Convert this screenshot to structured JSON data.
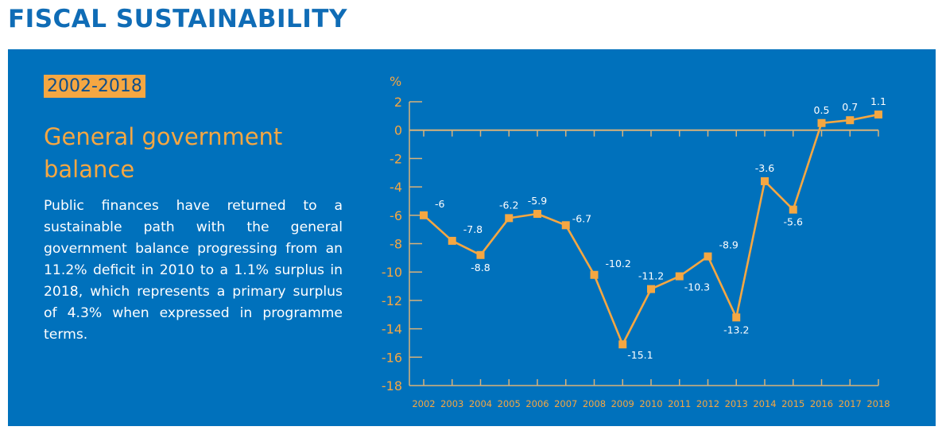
{
  "page": {
    "title": "FISCAL SUSTAINABILITY"
  },
  "panel": {
    "period": "2002-2018",
    "section_title": "General government balance",
    "body": "Public finances have returned to a sustainable path with the general government balance progressing from an 11.2% deficit in 2010 to a 1.1% surplus in 2018, which represents a primary surplus of 4.3% when expressed in programme terms."
  },
  "colors": {
    "title_blue": "#0f6cb6",
    "panel_blue": "#0071bc",
    "accent_orange": "#f5a742",
    "axis_tan": "#d9b27a",
    "label_white": "#ffffff"
  },
  "chart_data": {
    "type": "line",
    "title": "General government balance",
    "xlabel": "",
    "ylabel": "%",
    "x": [
      "2002",
      "2003",
      "2004",
      "2005",
      "2006",
      "2007",
      "2008",
      "2009",
      "2010",
      "2011",
      "2012",
      "2013",
      "2014",
      "2015",
      "2016",
      "2017",
      "2018"
    ],
    "series": [
      {
        "name": "General government balance",
        "values": [
          -6,
          -7.8,
          -8.8,
          -6.2,
          -5.9,
          -6.7,
          -10.2,
          -15.1,
          -11.2,
          -10.3,
          -8.9,
          -13.2,
          -3.6,
          -5.6,
          0.5,
          0.7,
          1.1
        ],
        "labels": [
          "-6",
          "-7.8",
          "-8.8",
          "-6.2",
          "-5.9",
          "-6.7",
          "-10.2",
          "-15.1",
          "-11.2",
          "-10.3",
          "-8.9",
          "-13.2",
          "-3.6",
          "-5.6",
          "0.5",
          "0.7",
          "1.1"
        ],
        "label_position": [
          "above-right",
          "above-right",
          "below",
          "above",
          "above",
          "right",
          "above-right",
          "below-right",
          "above",
          "below-right",
          "above-right",
          "below",
          "above",
          "below",
          "above",
          "above",
          "above"
        ]
      }
    ],
    "ylim": [
      -18,
      2
    ],
    "yticks": [
      2,
      0,
      -2,
      -4,
      -6,
      -8,
      -10,
      -12,
      -14,
      -16,
      -18
    ],
    "ytick_labels": [
      "2",
      "0",
      "-2",
      "-4",
      "-6",
      "-8",
      "-10",
      "-12",
      "-14",
      "-16",
      "-18"
    ],
    "grid": false,
    "legend": "none",
    "marker": "square"
  }
}
